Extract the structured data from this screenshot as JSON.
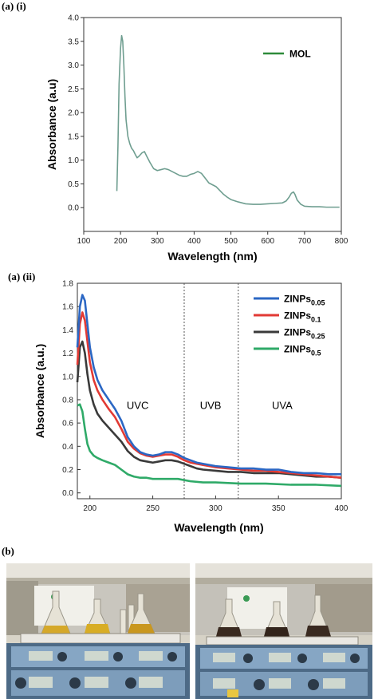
{
  "panels": {
    "a_i": "(a) (i)",
    "a_ii": "(a)  (ii)",
    "b": "(b)"
  },
  "chart_data": [
    {
      "type": "line",
      "xlabel": "Wavelength (nm)",
      "ylabel": "Absorbance (a.u)",
      "xlim": [
        100,
        800
      ],
      "ylim": [
        -0.5,
        4.0
      ],
      "xticks": [
        "100",
        "200",
        "300",
        "400",
        "500",
        "600",
        "700",
        "800"
      ],
      "yticks": [
        "0.0",
        "0.5",
        "1.0",
        "1.5",
        "2.0",
        "2.5",
        "3.0",
        "3.5",
        "4.0"
      ],
      "legend_position": "top-right",
      "series": [
        {
          "name": "MOL",
          "color": "#2e8b3a",
          "line_color": "#6f9e90",
          "x": [
            190,
            193,
            196,
            200,
            203,
            206,
            209,
            212,
            215,
            220,
            225,
            230,
            235,
            240,
            245,
            250,
            258,
            265,
            270,
            280,
            290,
            300,
            310,
            320,
            330,
            340,
            350,
            360,
            370,
            380,
            390,
            400,
            410,
            420,
            430,
            440,
            450,
            460,
            470,
            480,
            490,
            500,
            520,
            540,
            560,
            580,
            600,
            620,
            640,
            650,
            658,
            664,
            670,
            674,
            680,
            690,
            700,
            720,
            740,
            760,
            780,
            795
          ],
          "y": [
            0.35,
            1.3,
            2.6,
            3.35,
            3.62,
            3.5,
            3.0,
            2.35,
            1.85,
            1.5,
            1.35,
            1.25,
            1.2,
            1.12,
            1.05,
            1.08,
            1.15,
            1.18,
            1.1,
            0.95,
            0.82,
            0.78,
            0.8,
            0.82,
            0.8,
            0.76,
            0.72,
            0.68,
            0.66,
            0.66,
            0.7,
            0.72,
            0.76,
            0.72,
            0.62,
            0.52,
            0.48,
            0.44,
            0.36,
            0.28,
            0.22,
            0.17,
            0.12,
            0.08,
            0.07,
            0.07,
            0.08,
            0.09,
            0.1,
            0.14,
            0.22,
            0.3,
            0.33,
            0.28,
            0.16,
            0.07,
            0.03,
            0.02,
            0.02,
            0.01,
            0.01,
            0.01
          ]
        }
      ]
    },
    {
      "type": "line",
      "xlabel": "Wavelength (nm)",
      "ylabel": "Absorbance (a.u.)",
      "xlim": [
        190,
        400
      ],
      "ylim": [
        -0.05,
        1.8
      ],
      "xticks": [
        "200",
        "250",
        "300",
        "350",
        "400"
      ],
      "yticks": [
        "0.0",
        "0.2",
        "0.4",
        "0.6",
        "0.8",
        "1.0",
        "1.2",
        "1.4",
        "1.6",
        "1.8"
      ],
      "legend_position": "top-right",
      "vlines": [
        275,
        318
      ],
      "regions": [
        {
          "label": "UVC",
          "x": 238,
          "y": 0.72
        },
        {
          "label": "UVB",
          "x": 296,
          "y": 0.72
        },
        {
          "label": "UVA",
          "x": 353,
          "y": 0.72
        }
      ],
      "series": [
        {
          "name": "ZINPs",
          "subscript": "0.05",
          "color": "#2b67c4",
          "x": [
            190,
            192,
            194,
            196,
            198,
            200,
            203,
            206,
            210,
            215,
            220,
            225,
            230,
            235,
            240,
            245,
            250,
            255,
            260,
            265,
            270,
            275,
            280,
            285,
            290,
            300,
            310,
            320,
            330,
            340,
            350,
            360,
            370,
            380,
            390,
            400
          ],
          "y": [
            1.25,
            1.6,
            1.7,
            1.65,
            1.45,
            1.25,
            1.08,
            0.97,
            0.88,
            0.8,
            0.72,
            0.62,
            0.48,
            0.4,
            0.35,
            0.33,
            0.32,
            0.33,
            0.35,
            0.35,
            0.33,
            0.3,
            0.28,
            0.26,
            0.25,
            0.23,
            0.22,
            0.21,
            0.21,
            0.2,
            0.2,
            0.18,
            0.17,
            0.17,
            0.16,
            0.16
          ]
        },
        {
          "name": "ZINPs",
          "subscript": "0.1",
          "color": "#e23a34",
          "x": [
            190,
            192,
            194,
            196,
            198,
            200,
            203,
            206,
            210,
            215,
            220,
            225,
            230,
            235,
            240,
            245,
            250,
            255,
            260,
            265,
            270,
            275,
            280,
            285,
            290,
            300,
            310,
            320,
            330,
            340,
            350,
            360,
            370,
            380,
            390,
            400
          ],
          "y": [
            1.1,
            1.45,
            1.55,
            1.48,
            1.3,
            1.12,
            0.97,
            0.88,
            0.8,
            0.72,
            0.65,
            0.55,
            0.44,
            0.38,
            0.34,
            0.32,
            0.31,
            0.32,
            0.33,
            0.33,
            0.31,
            0.28,
            0.26,
            0.25,
            0.24,
            0.22,
            0.21,
            0.2,
            0.19,
            0.19,
            0.18,
            0.17,
            0.16,
            0.15,
            0.14,
            0.13
          ]
        },
        {
          "name": "ZINPs",
          "subscript": "0.25",
          "color": "#3a3a3a",
          "x": [
            190,
            192,
            194,
            196,
            198,
            200,
            203,
            206,
            210,
            215,
            220,
            225,
            230,
            235,
            240,
            245,
            250,
            255,
            260,
            265,
            270,
            275,
            280,
            285,
            290,
            300,
            310,
            320,
            330,
            340,
            350,
            360,
            370,
            380,
            390,
            400
          ],
          "y": [
            0.95,
            1.25,
            1.3,
            1.2,
            1.02,
            0.88,
            0.76,
            0.68,
            0.62,
            0.56,
            0.5,
            0.44,
            0.36,
            0.31,
            0.28,
            0.27,
            0.26,
            0.27,
            0.28,
            0.28,
            0.27,
            0.25,
            0.23,
            0.21,
            0.2,
            0.19,
            0.18,
            0.18,
            0.17,
            0.17,
            0.17,
            0.16,
            0.15,
            0.14,
            0.14,
            0.13
          ]
        },
        {
          "name": "ZINPs",
          "subscript": "0.5",
          "color": "#2faa68",
          "x": [
            190,
            192,
            194,
            196,
            198,
            200,
            203,
            206,
            210,
            215,
            220,
            225,
            230,
            235,
            240,
            245,
            250,
            260,
            270,
            280,
            290,
            300,
            320,
            340,
            360,
            380,
            400
          ],
          "y": [
            0.75,
            0.76,
            0.7,
            0.55,
            0.42,
            0.36,
            0.32,
            0.3,
            0.28,
            0.26,
            0.24,
            0.2,
            0.16,
            0.14,
            0.13,
            0.13,
            0.12,
            0.12,
            0.12,
            0.1,
            0.09,
            0.09,
            0.08,
            0.08,
            0.07,
            0.07,
            0.06
          ]
        }
      ]
    }
  ]
}
